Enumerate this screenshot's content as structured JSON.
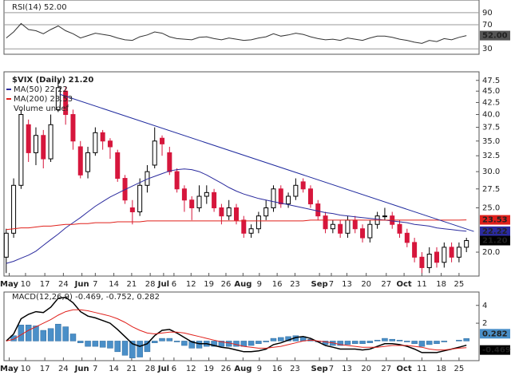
{
  "chart_data": [
    {
      "type": "line",
      "title": "RSI(14) 52.00",
      "color": "#333333",
      "grid": true,
      "xlim": [
        -0.3,
        63.7
      ],
      "ylim": [
        21,
        111
      ],
      "yticks": [
        90,
        70,
        30
      ],
      "values": [
        48,
        58,
        72,
        62,
        60,
        55,
        62,
        68,
        60,
        55,
        48,
        52,
        56,
        54,
        52,
        48,
        45,
        44,
        50,
        53,
        58,
        56,
        50,
        47,
        46,
        45,
        49,
        50,
        47,
        45,
        48,
        46,
        44,
        45,
        48,
        50,
        55,
        51,
        53,
        56,
        54,
        50,
        47,
        45,
        46,
        44,
        48,
        46,
        44,
        48,
        51,
        51,
        49,
        46,
        44,
        41,
        39,
        44,
        42,
        47,
        45,
        49,
        52
      ],
      "current_label": "52.00"
    },
    {
      "type": "candlestick",
      "title": "$VIX (Daily) 21.20",
      "log_scale": true,
      "up_color": "#000000",
      "down_color": "#d6163c",
      "last_label": "21.20",
      "volume_label": "Volume undef",
      "xlim": [
        -0.3,
        63.7
      ],
      "ylim": [
        17.73,
        49.6
      ],
      "yticks": [
        47.5,
        {
          "value": 45,
          "label": "45.0"
        },
        42.5,
        {
          "value": 40,
          "label": "40.0"
        },
        37.5,
        {
          "value": 35,
          "label": "35.0"
        },
        32.5,
        {
          "value": 30,
          "label": "30.0"
        },
        27.5,
        {
          "value": 25,
          "label": "25.0"
        },
        {
          "value": 20,
          "label": "20.0"
        }
      ],
      "xticks": [
        {
          "value": 0.4,
          "label": "May"
        },
        {
          "value": 2.6,
          "label": "10"
        },
        {
          "value": 5.2,
          "label": "17"
        },
        {
          "value": 7.7,
          "label": "24"
        },
        {
          "value": 10.2,
          "label": "Jun"
        },
        {
          "value": 12,
          "label": "7"
        },
        {
          "value": 14.5,
          "label": "14"
        },
        {
          "value": 16.9,
          "label": "21"
        },
        {
          "value": 19.4,
          "label": "28"
        },
        {
          "value": 21.2,
          "label": "Jul"
        },
        {
          "value": 22.6,
          "label": "6"
        },
        {
          "value": 24.9,
          "label": "12"
        },
        {
          "value": 27.3,
          "label": "19"
        },
        {
          "value": 29.6,
          "label": "26"
        },
        {
          "value": 31.9,
          "label": "Aug"
        },
        {
          "value": 34.1,
          "label": "9"
        },
        {
          "value": 36.5,
          "label": "16"
        },
        {
          "value": 38.9,
          "label": "23"
        },
        {
          "value": 42.2,
          "label": "Sep"
        },
        {
          "value": 43.8,
          "label": "7"
        },
        {
          "value": 45.9,
          "label": "13"
        },
        {
          "value": 48.5,
          "label": "20"
        },
        {
          "value": 51.2,
          "label": "27"
        },
        {
          "value": 53.6,
          "label": "Oct"
        },
        {
          "value": 56,
          "label": "11"
        },
        {
          "value": 58.6,
          "label": "18"
        },
        {
          "value": 61,
          "label": "25"
        }
      ],
      "ohlc": [
        [
          19.5,
          22.5,
          18.0,
          22.0
        ],
        [
          22.0,
          29.0,
          21.5,
          28.0
        ],
        [
          28.0,
          41.0,
          27.5,
          40.0
        ],
        [
          38.0,
          39.0,
          31.5,
          33.0
        ],
        [
          33.0,
          37.5,
          31.0,
          36.0
        ],
        [
          36.0,
          37.0,
          30.5,
          32.0
        ],
        [
          32.0,
          40.0,
          31.5,
          38.0
        ],
        [
          41.0,
          47.5,
          40.5,
          45.8
        ],
        [
          45.0,
          46.0,
          38.0,
          40.0
        ],
        [
          40.0,
          41.0,
          33.5,
          35.0
        ],
        [
          34.0,
          35.0,
          29.0,
          29.5
        ],
        [
          30.0,
          34.0,
          29.0,
          33.0
        ],
        [
          33.0,
          37.5,
          32.5,
          36.5
        ],
        [
          36.5,
          37.0,
          33.5,
          35.0
        ],
        [
          35.0,
          35.5,
          32.0,
          34.0
        ],
        [
          33.0,
          33.5,
          28.5,
          29.0
        ],
        [
          29.0,
          29.5,
          25.5,
          26.0
        ],
        [
          25.0,
          26.0,
          23.0,
          24.5
        ],
        [
          24.5,
          29.0,
          24.0,
          28.0
        ],
        [
          28.0,
          31.0,
          27.0,
          30.0
        ],
        [
          31.0,
          37.5,
          30.5,
          35.0
        ],
        [
          35.5,
          36.0,
          32.5,
          34.5
        ],
        [
          33.0,
          34.0,
          29.5,
          30.0
        ],
        [
          30.0,
          30.5,
          27.0,
          27.5
        ],
        [
          27.5,
          28.0,
          24.5,
          26.0
        ],
        [
          26.0,
          26.5,
          23.5,
          25.0
        ],
        [
          25.0,
          28.0,
          24.5,
          26.5
        ],
        [
          26.5,
          28.0,
          25.5,
          27.0
        ],
        [
          27.0,
          27.5,
          24.5,
          25.0
        ],
        [
          25.0,
          25.5,
          23.0,
          24.0
        ],
        [
          24.0,
          26.0,
          23.5,
          25.0
        ],
        [
          25.0,
          25.5,
          23.0,
          23.5
        ],
        [
          23.5,
          24.0,
          21.5,
          22.0
        ],
        [
          22.0,
          23.0,
          21.5,
          22.5
        ],
        [
          22.5,
          24.5,
          22.0,
          24.0
        ],
        [
          24.0,
          26.0,
          23.5,
          25.0
        ],
        [
          25.0,
          28.0,
          24.5,
          27.5
        ],
        [
          27.5,
          28.0,
          25.0,
          25.5
        ],
        [
          25.5,
          27.0,
          25.0,
          26.5
        ],
        [
          26.5,
          29.0,
          26.0,
          28.0
        ],
        [
          28.5,
          29.0,
          27.0,
          27.5
        ],
        [
          27.5,
          28.0,
          25.0,
          25.5
        ],
        [
          25.5,
          26.0,
          23.5,
          24.0
        ],
        [
          24.0,
          24.5,
          22.0,
          22.5
        ],
        [
          22.5,
          23.5,
          22.0,
          23.0
        ],
        [
          23.0,
          23.5,
          21.5,
          22.0
        ],
        [
          22.0,
          24.0,
          21.5,
          23.5
        ],
        [
          23.5,
          24.0,
          22.0,
          22.5
        ],
        [
          22.5,
          23.0,
          21.0,
          21.5
        ],
        [
          21.5,
          23.5,
          21.0,
          23.0
        ],
        [
          23.0,
          24.5,
          22.5,
          24.0
        ],
        [
          24.0,
          25.0,
          23.5,
          24.0
        ],
        [
          24.0,
          24.5,
          22.5,
          23.0
        ],
        [
          23.0,
          23.5,
          21.5,
          22.0
        ],
        [
          22.0,
          22.5,
          20.5,
          21.0
        ],
        [
          21.0,
          21.5,
          19.0,
          19.5
        ],
        [
          19.5,
          20.0,
          18.0,
          18.5
        ],
        [
          18.5,
          20.5,
          18.0,
          19.8
        ],
        [
          20.0,
          20.5,
          18.5,
          19.0
        ],
        [
          19.0,
          21.0,
          18.5,
          20.5
        ],
        [
          20.5,
          21.0,
          19.0,
          19.5
        ],
        [
          19.5,
          21.0,
          19.0,
          20.5
        ],
        [
          20.5,
          21.5,
          20.0,
          21.2
        ]
      ],
      "series": [
        {
          "name": "MA(50) 22.22",
          "color": "#2b2b9e",
          "last_label": "22.22",
          "values": [
            18.9,
            19.1,
            19.4,
            19.7,
            20.1,
            20.7,
            21.3,
            21.9,
            22.6,
            23.2,
            23.8,
            24.5,
            25.2,
            25.8,
            26.4,
            26.9,
            27.4,
            27.9,
            28.4,
            28.9,
            29.3,
            29.7,
            30.1,
            30.3,
            30.4,
            30.3,
            30.0,
            29.5,
            28.9,
            28.3,
            27.7,
            27.2,
            26.8,
            26.5,
            26.2,
            26.0,
            25.8,
            25.6,
            25.4,
            25.2,
            25.0,
            24.8,
            24.6,
            24.4,
            24.3,
            24.1,
            24.0,
            23.9,
            23.8,
            23.7,
            23.6,
            23.5,
            23.4,
            23.3,
            23.2,
            23.0,
            22.9,
            22.8,
            22.6,
            22.5,
            22.4,
            22.3,
            22.22
          ]
        },
        {
          "name": "MA(200) 23.53",
          "color": "#e0201b",
          "last_label": "23.53",
          "values": [
            22.4,
            22.5,
            22.6,
            22.6,
            22.7,
            22.8,
            22.8,
            22.9,
            23.0,
            23.0,
            23.1,
            23.1,
            23.2,
            23.2,
            23.2,
            23.3,
            23.3,
            23.3,
            23.3,
            23.4,
            23.4,
            23.4,
            23.4,
            23.4,
            23.4,
            23.4,
            23.4,
            23.4,
            23.4,
            23.4,
            23.4,
            23.4,
            23.4,
            23.4,
            23.4,
            23.4,
            23.4,
            23.4,
            23.4,
            23.4,
            23.4,
            23.5,
            23.5,
            23.5,
            23.5,
            23.5,
            23.5,
            23.5,
            23.5,
            23.5,
            23.5,
            23.5,
            23.5,
            23.5,
            23.5,
            23.5,
            23.5,
            23.5,
            23.5,
            23.5,
            23.5,
            23.5,
            23.53
          ]
        }
      ],
      "trendline": {
        "color": "#1f2a9e",
        "x": [
          7.2,
          63
        ],
        "values": [
          44.3,
          22.2
        ]
      }
    },
    {
      "type": "macd",
      "title": "MACD(12,26,9) -0.469, -0.752, 0.282",
      "xlim": [
        -0.3,
        63.7
      ],
      "ylim": [
        -2.2,
        5.5
      ],
      "yticks": [
        4,
        2
      ],
      "xticks": [
        {
          "value": 0.4,
          "label": "May"
        },
        {
          "value": 2.6,
          "label": "10"
        },
        {
          "value": 5.2,
          "label": "17"
        },
        {
          "value": 7.7,
          "label": "24"
        },
        {
          "value": 10.2,
          "label": "Jun"
        },
        {
          "value": 12,
          "label": "7"
        },
        {
          "value": 14.5,
          "label": "14"
        },
        {
          "value": 16.9,
          "label": "21"
        },
        {
          "value": 19.4,
          "label": "28"
        },
        {
          "value": 21.2,
          "label": "Jul"
        },
        {
          "value": 22.6,
          "label": "6"
        },
        {
          "value": 24.9,
          "label": "12"
        },
        {
          "value": 27.3,
          "label": "19"
        },
        {
          "value": 29.6,
          "label": "26"
        },
        {
          "value": 31.9,
          "label": "Aug"
        },
        {
          "value": 34.1,
          "label": "9"
        },
        {
          "value": 36.5,
          "label": "16"
        },
        {
          "value": 38.9,
          "label": "23"
        },
        {
          "value": 42.2,
          "label": "Sep"
        },
        {
          "value": 43.8,
          "label": "7"
        },
        {
          "value": 45.9,
          "label": "13"
        },
        {
          "value": 48.5,
          "label": "20"
        },
        {
          "value": 51.2,
          "label": "27"
        },
        {
          "value": 53.6,
          "label": "Oct"
        },
        {
          "value": 56,
          "label": "11"
        },
        {
          "value": 58.6,
          "label": "18"
        },
        {
          "value": 61,
          "label": "25"
        }
      ],
      "histogram": {
        "color": "#4a8fc8",
        "last_label": "0.282",
        "values": [
          0.0,
          0.6,
          1.8,
          1.8,
          1.7,
          1.2,
          1.4,
          1.9,
          1.6,
          0.8,
          -0.2,
          -0.6,
          -0.6,
          -0.7,
          -0.8,
          -1.2,
          -1.6,
          -1.9,
          -1.8,
          -1.2,
          -0.2,
          0.3,
          0.3,
          -0.1,
          -0.5,
          -0.8,
          -0.8,
          -0.6,
          -0.6,
          -0.6,
          -0.6,
          -0.6,
          -0.6,
          -0.5,
          -0.3,
          -0.1,
          0.3,
          0.4,
          0.5,
          0.6,
          0.5,
          0.2,
          -0.1,
          -0.4,
          -0.5,
          -0.5,
          -0.4,
          -0.3,
          -0.3,
          -0.2,
          0.1,
          0.3,
          0.2,
          0.1,
          -0.1,
          -0.3,
          -0.6,
          -0.4,
          -0.3,
          -0.1,
          0.0,
          0.1,
          0.282
        ]
      },
      "series": [
        {
          "color": "#000000",
          "last_label": "-0.469",
          "values": [
            0.0,
            0.8,
            2.5,
            3.0,
            3.3,
            3.2,
            3.8,
            4.8,
            4.9,
            4.3,
            3.3,
            2.8,
            2.6,
            2.3,
            2.0,
            1.3,
            0.5,
            -0.3,
            -0.6,
            -0.3,
            0.6,
            1.2,
            1.3,
            0.9,
            0.4,
            -0.1,
            -0.3,
            -0.3,
            -0.5,
            -0.7,
            -0.8,
            -1.0,
            -1.2,
            -1.2,
            -1.1,
            -0.9,
            -0.4,
            -0.2,
            0.1,
            0.4,
            0.5,
            0.3,
            -0.1,
            -0.5,
            -0.7,
            -0.9,
            -0.9,
            -0.9,
            -1.0,
            -0.9,
            -0.6,
            -0.3,
            -0.3,
            -0.4,
            -0.6,
            -0.9,
            -1.3,
            -1.3,
            -1.3,
            -1.1,
            -0.9,
            -0.7,
            -0.469
          ]
        },
        {
          "color": "#e0201b",
          "values": [
            0.0,
            0.2,
            0.7,
            1.2,
            1.6,
            2.0,
            2.4,
            2.9,
            3.3,
            3.5,
            3.5,
            3.4,
            3.2,
            3.0,
            2.8,
            2.5,
            2.1,
            1.6,
            1.2,
            0.9,
            0.8,
            0.9,
            1.0,
            1.0,
            0.9,
            0.7,
            0.5,
            0.3,
            0.1,
            -0.1,
            -0.2,
            -0.4,
            -0.6,
            -0.7,
            -0.8,
            -0.8,
            -0.7,
            -0.6,
            -0.4,
            -0.2,
            0.0,
            0.1,
            0.0,
            -0.1,
            -0.2,
            -0.4,
            -0.5,
            -0.6,
            -0.7,
            -0.7,
            -0.7,
            -0.6,
            -0.5,
            -0.5,
            -0.5,
            -0.6,
            -0.7,
            -0.9,
            -1.0,
            -1.0,
            -0.9,
            -0.8,
            -0.752
          ]
        }
      ]
    }
  ]
}
